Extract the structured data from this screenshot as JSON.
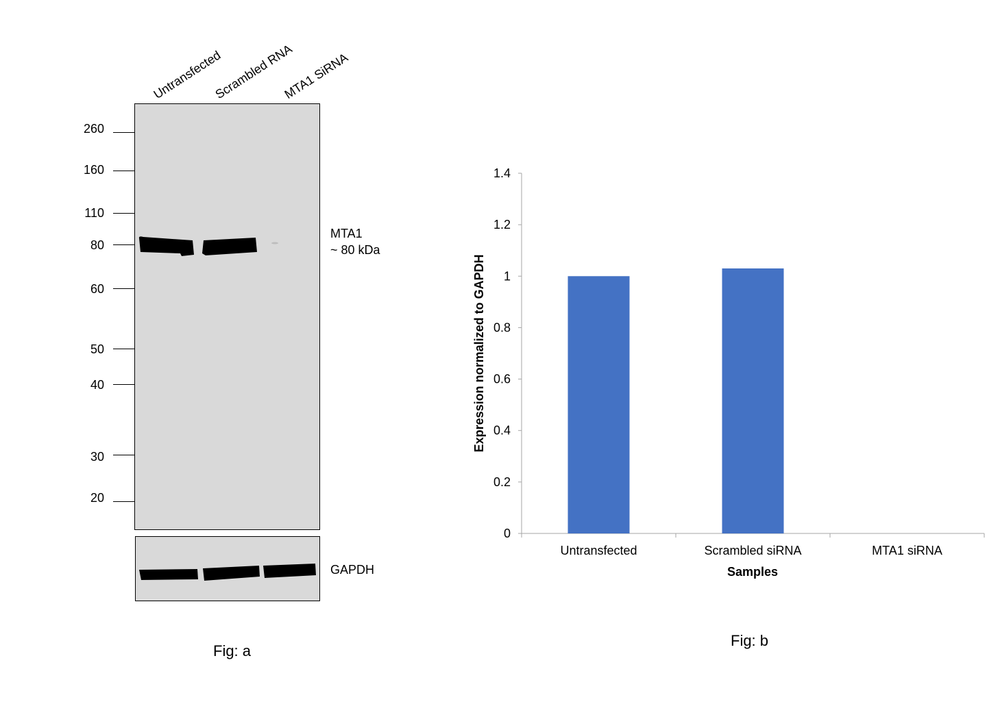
{
  "figure_a": {
    "lane_labels": [
      "Untransfected",
      "Scrambled RNA",
      "MTA1 SiRNA"
    ],
    "mw_markers": [
      "260",
      "160",
      "110",
      "80",
      "60",
      "50",
      "40",
      "30",
      "20"
    ],
    "band_label_line1": "MTA1",
    "band_label_line2": "~ 80 kDa",
    "loading_control_label": "GAPDH",
    "caption": "Fig: a"
  },
  "figure_b": {
    "caption": "Fig: b"
  },
  "chart_data": {
    "type": "bar",
    "categories": [
      "Untransfected",
      "Scrambled siRNA",
      "MTA1 siRNA"
    ],
    "values": [
      1.0,
      1.03,
      0.0
    ],
    "title": "",
    "xlabel": "Samples",
    "ylabel": "Expression normalized to GAPDH",
    "ylim": [
      0,
      1.4
    ],
    "yticks": [
      "0",
      "0.2",
      "0.4",
      "0.6",
      "0.8",
      "1",
      "1.2",
      "1.4"
    ],
    "grid": false,
    "bar_color": "#4472c4"
  }
}
